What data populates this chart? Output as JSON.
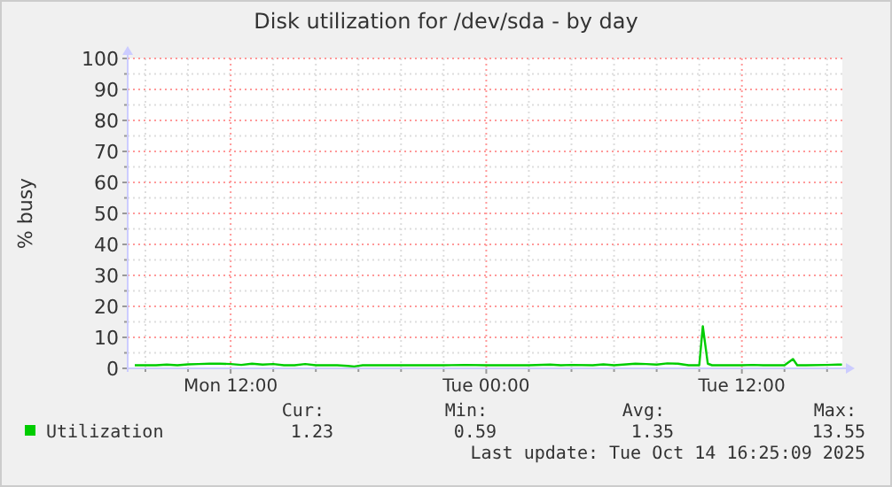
{
  "chart_data": {
    "type": "line",
    "title": "Disk utilization for /dev/sda - by day",
    "ylabel": "% busy",
    "x": [
      "2025-10-13T07:30",
      "2025-10-13T08:00",
      "2025-10-13T08:30",
      "2025-10-13T09:00",
      "2025-10-13T09:30",
      "2025-10-13T10:00",
      "2025-10-13T10:30",
      "2025-10-13T11:00",
      "2025-10-13T11:30",
      "2025-10-13T12:00",
      "2025-10-13T12:30",
      "2025-10-13T13:00",
      "2025-10-13T13:30",
      "2025-10-13T14:00",
      "2025-10-13T14:30",
      "2025-10-13T15:00",
      "2025-10-13T15:30",
      "2025-10-13T16:00",
      "2025-10-13T16:30",
      "2025-10-13T17:00",
      "2025-10-13T17:30",
      "2025-10-13T17:48",
      "2025-10-13T18:12",
      "2025-10-13T19:00",
      "2025-10-13T20:00",
      "2025-10-13T21:00",
      "2025-10-13T22:00",
      "2025-10-13T23:00",
      "2025-10-14T00:00",
      "2025-10-14T01:00",
      "2025-10-14T02:00",
      "2025-10-14T03:00",
      "2025-10-14T03:30",
      "2025-10-14T04:00",
      "2025-10-14T05:00",
      "2025-10-14T05:30",
      "2025-10-14T06:00",
      "2025-10-14T07:00",
      "2025-10-14T07:30",
      "2025-10-14T08:00",
      "2025-10-14T08:30",
      "2025-10-14T09:00",
      "2025-10-14T09:30",
      "2025-10-14T10:00",
      "2025-10-14T10:10",
      "2025-10-14T10:24",
      "2025-10-14T10:36",
      "2025-10-14T11:00",
      "2025-10-14T12:00",
      "2025-10-14T12:30",
      "2025-10-14T13:00",
      "2025-10-14T14:00",
      "2025-10-14T14:24",
      "2025-10-14T14:36",
      "2025-10-14T15:00",
      "2025-10-14T16:00",
      "2025-10-14T16:30",
      "2025-10-14T16:42"
    ],
    "series": [
      {
        "name": "Utilization",
        "color": "#00cc00",
        "values": [
          1.0,
          1.0,
          1.0,
          1.2,
          1.0,
          1.3,
          1.4,
          1.5,
          1.5,
          1.4,
          1.1,
          1.5,
          1.2,
          1.4,
          1.0,
          1.0,
          1.4,
          1.0,
          1.0,
          1.0,
          0.8,
          0.6,
          1.0,
          1.0,
          1.0,
          1.0,
          1.0,
          1.1,
          1.0,
          1.0,
          1.0,
          1.2,
          1.0,
          1.1,
          1.0,
          1.3,
          1.0,
          1.5,
          1.4,
          1.2,
          1.6,
          1.5,
          1.0,
          1.0,
          13.6,
          1.5,
          1.0,
          1.0,
          1.0,
          1.1,
          1.0,
          1.0,
          3.0,
          1.0,
          1.0,
          1.1,
          1.2,
          1.2
        ]
      }
    ],
    "xlim": [
      "2025-10-13T07:10",
      "2025-10-14T16:43"
    ],
    "xticks": [
      {
        "value": "2025-10-13T08:00",
        "label": null
      },
      {
        "value": "2025-10-13T10:00",
        "label": null
      },
      {
        "value": "2025-10-13T12:00",
        "label": "Mon 12:00"
      },
      {
        "value": "2025-10-13T14:00",
        "label": null
      },
      {
        "value": "2025-10-13T16:00",
        "label": null
      },
      {
        "value": "2025-10-13T18:00",
        "label": null
      },
      {
        "value": "2025-10-13T20:00",
        "label": null
      },
      {
        "value": "2025-10-13T22:00",
        "label": null
      },
      {
        "value": "2025-10-14T00:00",
        "label": "Tue 00:00"
      },
      {
        "value": "2025-10-14T02:00",
        "label": null
      },
      {
        "value": "2025-10-14T04:00",
        "label": null
      },
      {
        "value": "2025-10-14T06:00",
        "label": null
      },
      {
        "value": "2025-10-14T08:00",
        "label": null
      },
      {
        "value": "2025-10-14T10:00",
        "label": null
      },
      {
        "value": "2025-10-14T12:00",
        "label": "Tue 12:00"
      },
      {
        "value": "2025-10-14T14:00",
        "label": null
      },
      {
        "value": "2025-10-14T16:00",
        "label": null
      }
    ],
    "ylim": [
      0,
      100
    ],
    "yticks": [
      0,
      {
        "value": 5,
        "label": null
      },
      10,
      {
        "value": 15,
        "label": null
      },
      20,
      {
        "value": 25,
        "label": null
      },
      30,
      {
        "value": 35,
        "label": null
      },
      40,
      {
        "value": 45,
        "label": null
      },
      50,
      {
        "value": 55,
        "label": null
      },
      60,
      {
        "value": 65,
        "label": null
      },
      70,
      {
        "value": 75,
        "label": null
      },
      80,
      {
        "value": 85,
        "label": null
      },
      90,
      {
        "value": 95,
        "label": null
      },
      100
    ],
    "grid": true,
    "legend": "bottom",
    "annotations": [
      "Cur:",
      "Min:",
      "Avg:",
      "Max:",
      "1.23",
      "0.59",
      "1.35",
      "13.55",
      "Last update: Tue Oct 14 16:25:09 2025"
    ]
  }
}
